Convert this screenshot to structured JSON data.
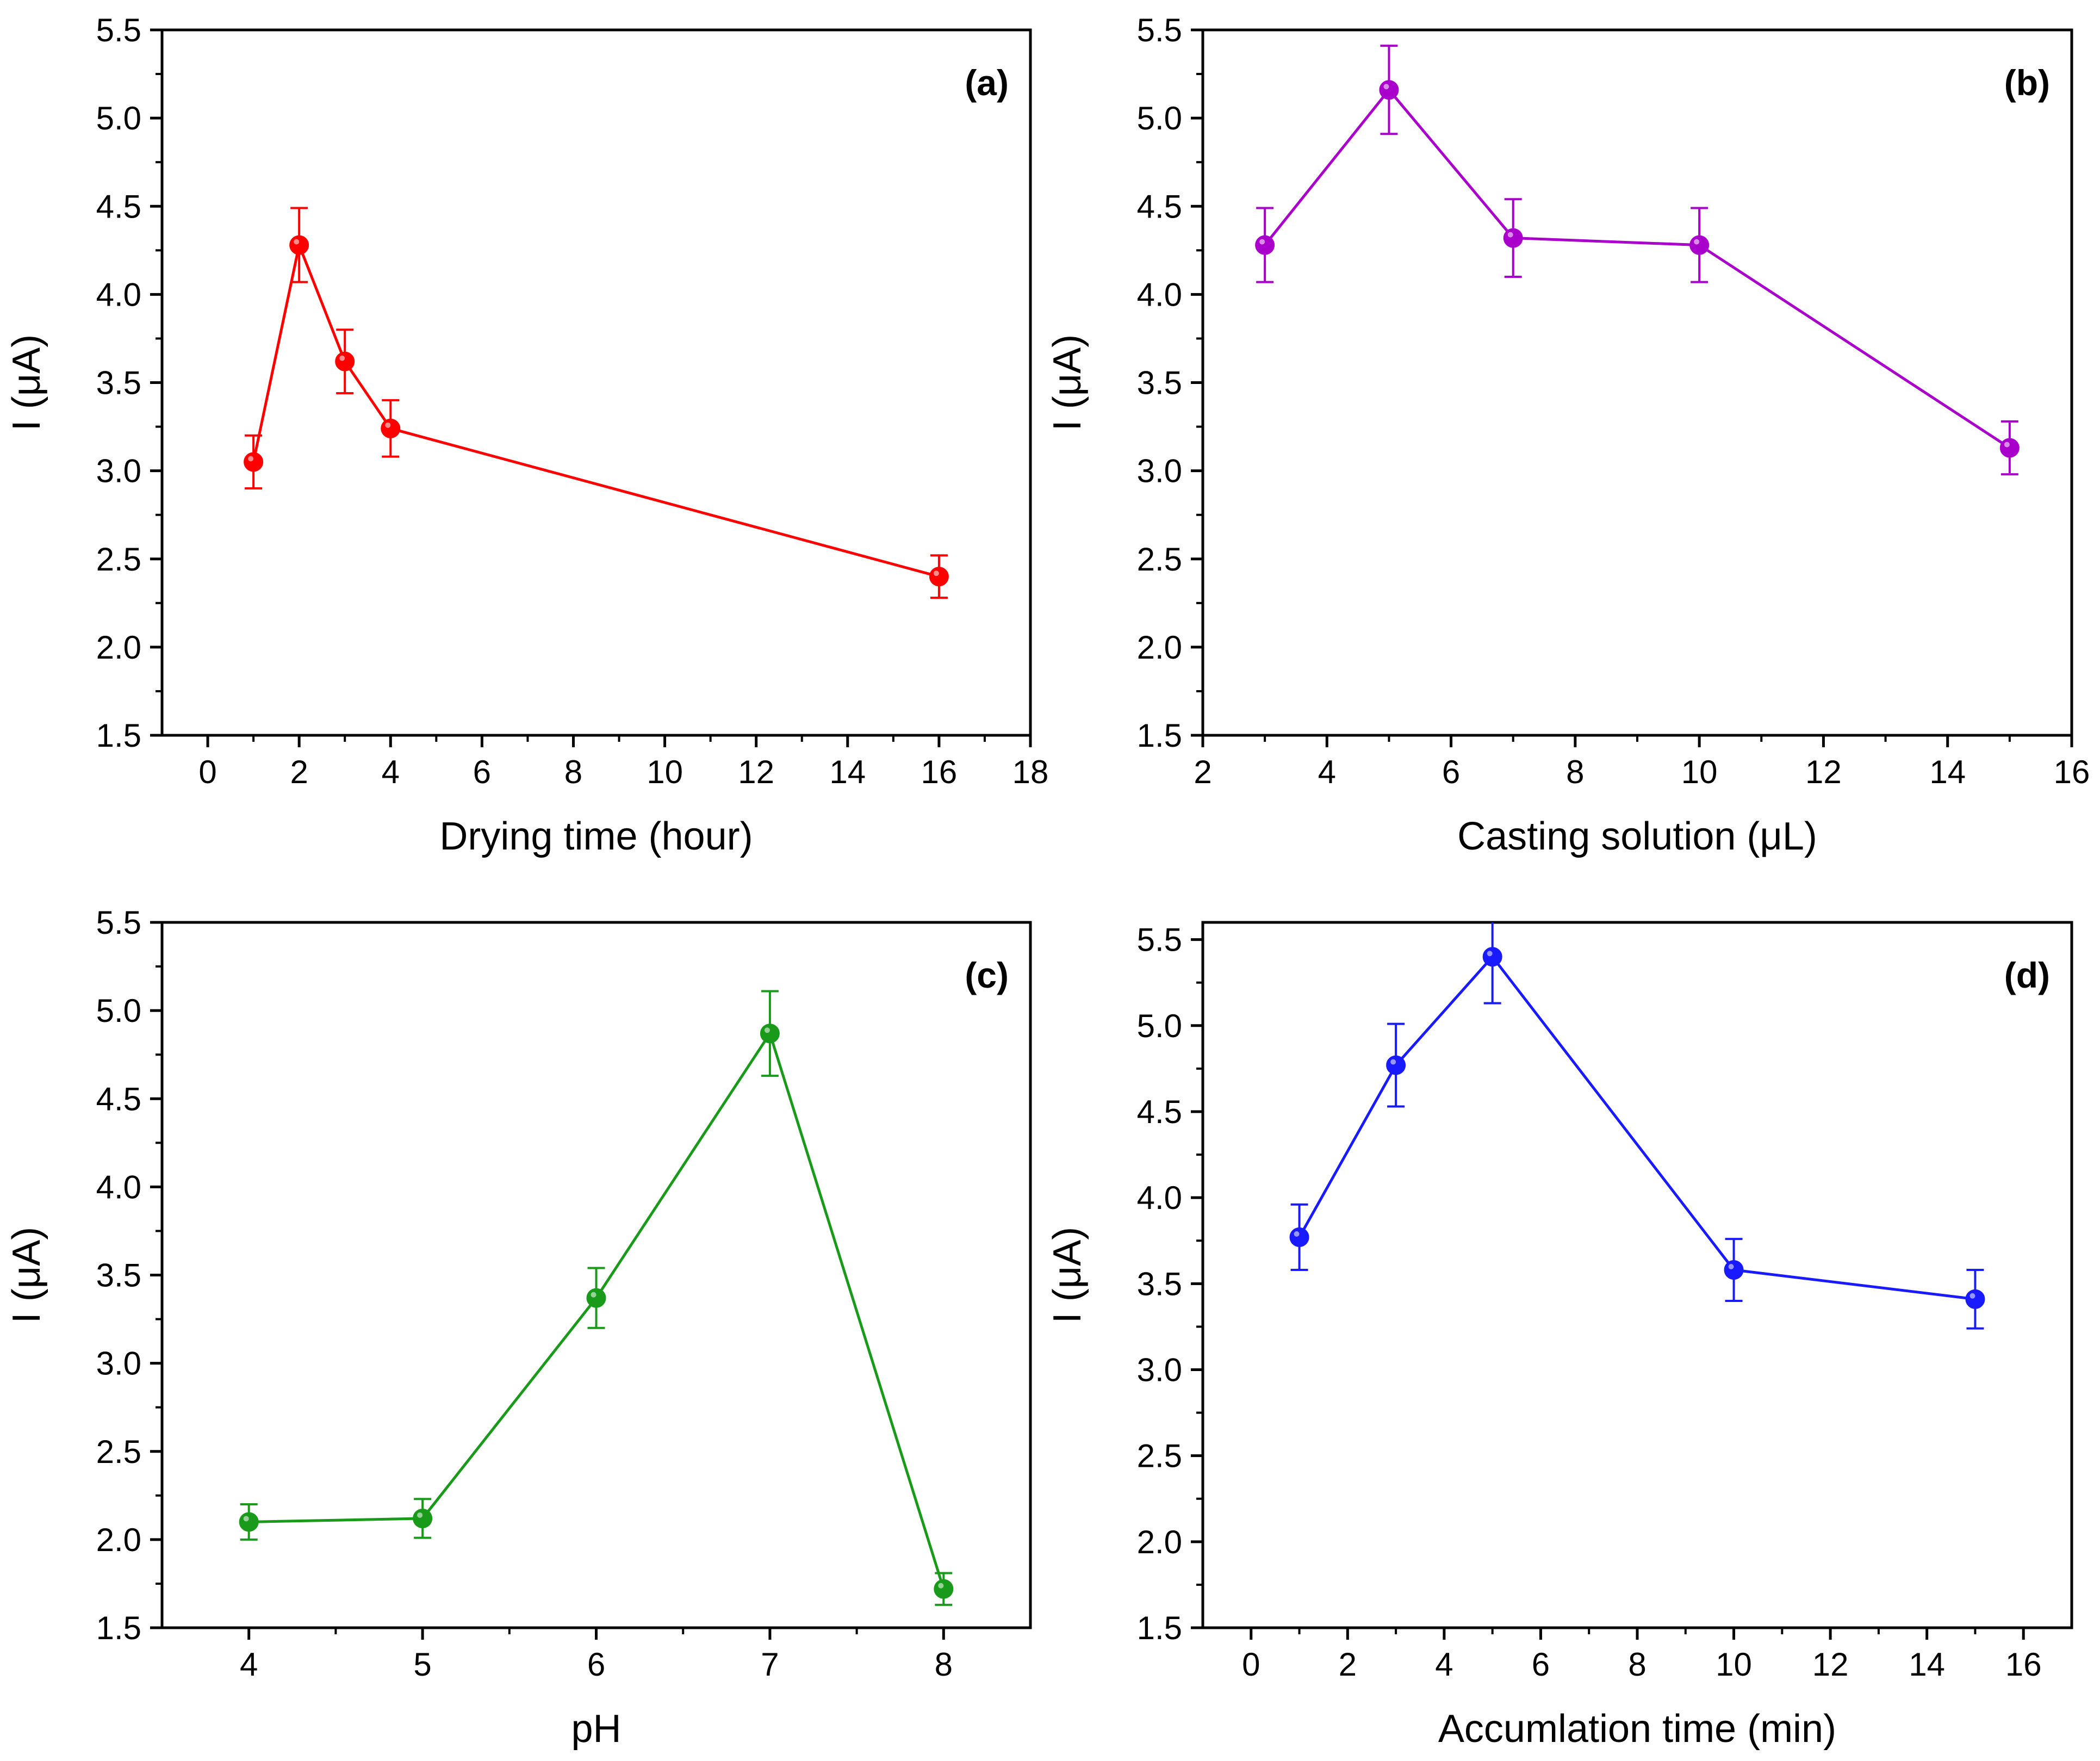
{
  "figure": {
    "panels": [
      "a",
      "b",
      "c",
      "d"
    ]
  },
  "chart_data": [
    {
      "type": "line",
      "panel_label": "(a)",
      "panel_label_parts": [
        "(",
        "a",
        ")"
      ],
      "panel_label_bold_letter": true,
      "title": "",
      "xlabel": "Drying time (hour)",
      "ylabel": "I (μA)",
      "xlim": [
        -1,
        18
      ],
      "ylim": [
        1.5,
        5.5
      ],
      "xticks": [
        0,
        2,
        4,
        6,
        8,
        10,
        12,
        14,
        16,
        18
      ],
      "yticks": [
        1.5,
        2.0,
        2.5,
        3.0,
        3.5,
        4.0,
        4.5,
        5.0,
        5.5
      ],
      "color": "#ff0000",
      "series": [
        {
          "name": "Drying time",
          "x": [
            1,
            2,
            3,
            4,
            16
          ],
          "values": [
            3.05,
            4.28,
            3.62,
            3.24,
            2.4
          ],
          "errors": [
            0.15,
            0.21,
            0.18,
            0.16,
            0.12
          ]
        }
      ]
    },
    {
      "type": "line",
      "panel_label": "(b)",
      "panel_label_parts": [
        "(",
        "b",
        ")"
      ],
      "panel_label_bold_letter": true,
      "title": "",
      "xlabel": "Casting solution (μL)",
      "ylabel": "I (μA)",
      "xlim": [
        2,
        16
      ],
      "ylim": [
        1.5,
        5.5
      ],
      "xticks": [
        2,
        4,
        6,
        8,
        10,
        12,
        14,
        16
      ],
      "yticks": [
        1.5,
        2.0,
        2.5,
        3.0,
        3.5,
        4.0,
        4.5,
        5.0,
        5.5
      ],
      "color": "#aa00cc",
      "series": [
        {
          "name": "Casting solution",
          "x": [
            3,
            5,
            7,
            10,
            15
          ],
          "values": [
            4.28,
            5.16,
            4.32,
            4.28,
            3.13
          ],
          "errors": [
            0.21,
            0.25,
            0.22,
            0.21,
            0.15
          ]
        }
      ]
    },
    {
      "type": "line",
      "panel_label": "(c)",
      "panel_label_parts": [
        "(",
        "c",
        ")"
      ],
      "panel_label_bold_letter": true,
      "title": "",
      "xlabel": "pH",
      "ylabel": "I (μA)",
      "xlim": [
        3.5,
        8.5
      ],
      "ylim": [
        1.5,
        5.5
      ],
      "xticks": [
        4,
        5,
        6,
        7,
        8
      ],
      "yticks": [
        1.5,
        2.0,
        2.5,
        3.0,
        3.5,
        4.0,
        4.5,
        5.0,
        5.5
      ],
      "color": "#1a9a1a",
      "series": [
        {
          "name": "pH",
          "x": [
            4,
            5,
            6,
            7,
            8
          ],
          "values": [
            2.1,
            2.12,
            3.37,
            4.87,
            1.72
          ],
          "errors": [
            0.1,
            0.11,
            0.17,
            0.24,
            0.09
          ]
        }
      ]
    },
    {
      "type": "line",
      "panel_label": "(d)",
      "panel_label_parts": [
        "(",
        "d",
        ")"
      ],
      "panel_label_bold_letter": true,
      "title": "",
      "xlabel": "Accumlation time (min)",
      "ylabel": "I (μA)",
      "xlim": [
        -1,
        17
      ],
      "ylim": [
        1.5,
        5.6
      ],
      "xticks": [
        0,
        2,
        4,
        6,
        8,
        10,
        12,
        14,
        16
      ],
      "yticks": [
        1.5,
        2.0,
        2.5,
        3.0,
        3.5,
        4.0,
        4.5,
        5.0,
        5.5
      ],
      "color": "#1a1aff",
      "series": [
        {
          "name": "Accumlation time",
          "x": [
            1,
            3,
            5,
            10,
            15
          ],
          "values": [
            3.77,
            4.77,
            5.4,
            3.58,
            3.41
          ],
          "errors": [
            0.19,
            0.24,
            0.27,
            0.18,
            0.17
          ]
        }
      ]
    }
  ]
}
